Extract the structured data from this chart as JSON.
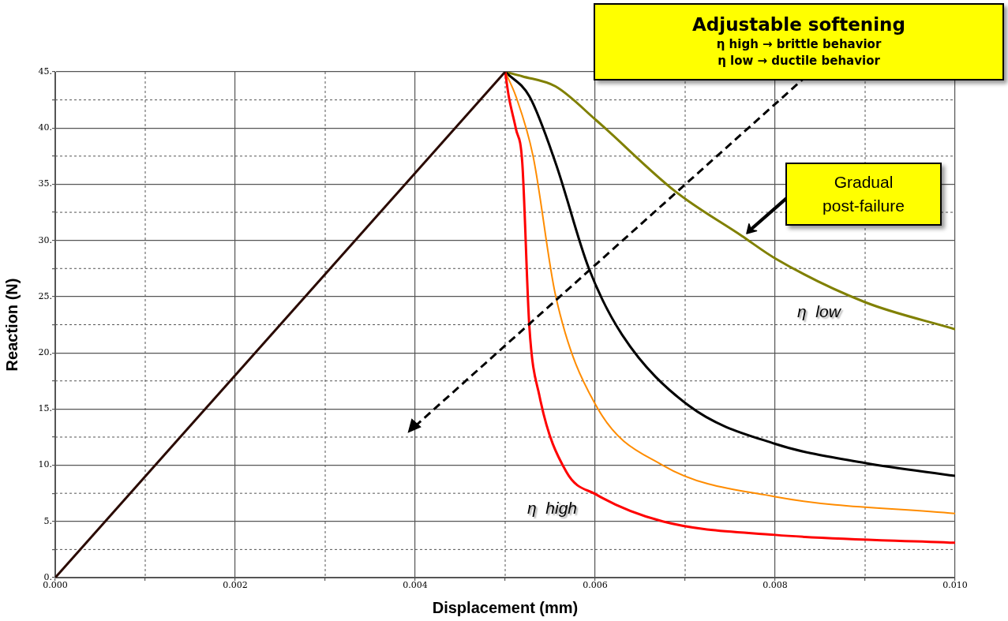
{
  "chart_data": {
    "type": "line",
    "xlabel": "Displacement (mm)",
    "ylabel": "Reaction (N)",
    "xlim": [
      0,
      0.01
    ],
    "ylim": [
      0,
      45
    ],
    "xticks": [
      {
        "value": 0,
        "label": "0.000"
      },
      {
        "value": 0.001,
        "label": null
      },
      {
        "value": 0.002,
        "label": "0.002"
      },
      {
        "value": 0.003,
        "label": null
      },
      {
        "value": 0.004,
        "label": "0.004"
      },
      {
        "value": 0.005,
        "label": null
      },
      {
        "value": 0.006,
        "label": "0.006"
      },
      {
        "value": 0.007,
        "label": null
      },
      {
        "value": 0.008,
        "label": "0.008"
      },
      {
        "value": 0.009,
        "label": null
      },
      {
        "value": 0.01,
        "label": "0.010"
      }
    ],
    "yticks": [
      {
        "value": 0,
        "label": "0."
      },
      {
        "value": 2.5,
        "label": null
      },
      {
        "value": 5,
        "label": "5."
      },
      {
        "value": 7.5,
        "label": null
      },
      {
        "value": 10,
        "label": "10."
      },
      {
        "value": 12.5,
        "label": null
      },
      {
        "value": 15,
        "label": "15."
      },
      {
        "value": 17.5,
        "label": null
      },
      {
        "value": 20,
        "label": "20."
      },
      {
        "value": 22.5,
        "label": null
      },
      {
        "value": 25,
        "label": "25."
      },
      {
        "value": 27.5,
        "label": null
      },
      {
        "value": 30,
        "label": "30."
      },
      {
        "value": 32.5,
        "label": null
      },
      {
        "value": 35,
        "label": "35."
      },
      {
        "value": 37.5,
        "label": null
      },
      {
        "value": 40,
        "label": "40."
      },
      {
        "value": 42.5,
        "label": null
      },
      {
        "value": 45,
        "label": "45."
      }
    ],
    "grid": true,
    "legend": false,
    "marker": "none",
    "line_style": "solid",
    "series": [
      {
        "color": "#2a0a00",
        "x": [
          0,
          0.005
        ],
        "values": [
          0,
          45
        ]
      },
      {
        "color": "#ff0000",
        "x": [
          0.005,
          0.00504,
          0.00512,
          0.00519,
          0.005268,
          0.00538,
          0.00568,
          0.00601,
          0.00675,
          0.008,
          0.01
        ],
        "values": [
          45,
          42.8,
          39.9,
          36.9,
          22.4,
          16.2,
          9.4,
          7.4,
          5.0,
          3.8,
          3.1
        ]
      },
      {
        "color": "#ff8c00",
        "x": [
          0.005,
          0.00512,
          0.00531,
          0.00556,
          0.00601,
          0.00675,
          0.008,
          0.01
        ],
        "values": [
          45,
          42.8,
          37.5,
          25.1,
          15.3,
          10.0,
          7.2,
          5.7
        ]
      },
      {
        "color": "#000000",
        "x": [
          0.005,
          0.00527,
          0.00556,
          0.00593,
          0.0063,
          0.00704,
          0.008,
          0.009,
          0.01
        ],
        "values": [
          45,
          42.8,
          36.9,
          27.5,
          21.6,
          15.3,
          11.9,
          10.2,
          9.05
        ]
      },
      {
        "color": "#808000",
        "x": [
          0.005,
          0.00519,
          0.00556,
          0.00601,
          0.0069,
          0.00763,
          0.008,
          0.009,
          0.01
        ],
        "values": [
          45,
          44.6,
          43.7,
          40.7,
          34.3,
          30.4,
          28.4,
          24.5,
          22.1
        ]
      }
    ],
    "annotations": [
      "Adjustable softening",
      "η high → brittle behavior",
      "η low → ductile behavior",
      "Gradual post-failure",
      "η  low",
      "η  high"
    ]
  }
}
